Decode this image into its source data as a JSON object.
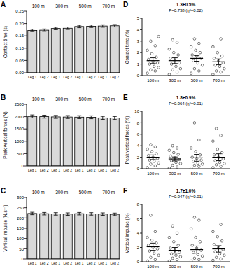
{
  "chart_data": [
    {
      "type": "bar",
      "panel": "A",
      "y_label": "Contact time (s)",
      "categories": [
        "100 m",
        "300 m",
        "500 m",
        "700 m"
      ],
      "ylim": [
        0,
        0.25
      ],
      "yticks": [
        {
          "value": 0,
          "label": "0.00"
        },
        {
          "value": 0.05,
          "label": "0.05"
        },
        {
          "value": 0.1,
          "label": "0.10"
        },
        {
          "value": 0.15,
          "label": "0.15"
        },
        {
          "value": 0.2,
          "label": "0.20"
        },
        {
          "value": 0.25,
          "label": "0.25"
        }
      ],
      "series": [
        {
          "name": "Leg 1",
          "color": "#d9d9d9",
          "values": [
            0.172,
            0.18,
            0.188,
            0.19
          ],
          "errors": [
            0.005,
            0.005,
            0.005,
            0.005
          ]
        },
        {
          "name": "Leg 2",
          "color": "#d9d9d9",
          "values": [
            0.173,
            0.181,
            0.189,
            0.191
          ],
          "errors": [
            0.005,
            0.005,
            0.005,
            0.005
          ]
        }
      ]
    },
    {
      "type": "bar",
      "panel": "B",
      "y_label": "Peak vertical forces (N)",
      "categories": [
        "100 m",
        "300 m",
        "500 m",
        "700 m"
      ],
      "ylim": [
        0,
        2500
      ],
      "yticks": [
        0,
        500,
        1000,
        1500,
        2000,
        2500
      ],
      "series": [
        {
          "name": "Leg 1",
          "color": "#d9d9d9",
          "values": [
            2010,
            1990,
            1980,
            1950
          ],
          "errors": [
            60,
            60,
            60,
            60
          ]
        },
        {
          "name": "Leg 2",
          "color": "#d9d9d9",
          "values": [
            2000,
            1985,
            1975,
            1945
          ],
          "errors": [
            60,
            60,
            60,
            60
          ]
        }
      ]
    },
    {
      "type": "bar",
      "panel": "C",
      "y_label": "Vertical impulse (N.s⁻¹)",
      "categories": [
        "100 m",
        "300 m",
        "500 m",
        "700 m"
      ],
      "ylim": [
        0,
        300
      ],
      "yticks": [
        0,
        50,
        100,
        150,
        200,
        250,
        300
      ],
      "series": [
        {
          "name": "Leg 1",
          "color": "#d9d9d9",
          "values": [
            222,
            220,
            221,
            219
          ],
          "errors": [
            6,
            6,
            6,
            6
          ]
        },
        {
          "name": "Leg 2",
          "color": "#d9d9d9",
          "values": [
            221,
            219,
            220,
            218
          ],
          "errors": [
            6,
            6,
            6,
            6
          ]
        }
      ]
    },
    {
      "type": "scatter",
      "panel": "D",
      "y_label": "Contact time (%)",
      "annotations": [
        "1.3±0.5%",
        "P=0.738 (η²=0.02)"
      ],
      "categories": [
        "100 m",
        "300 m",
        "500 m",
        "700 m"
      ],
      "ylim": [
        0,
        5
      ],
      "yticks": [
        0,
        1,
        2,
        3,
        4,
        5
      ],
      "color": "#555555",
      "points": [
        [
          0.2,
          0.4,
          0.5,
          0.7,
          0.8,
          1.0,
          1.1,
          1.2,
          1.4,
          1.6,
          1.9,
          2.2,
          2.6,
          3.0,
          3.4
        ],
        [
          0.1,
          0.3,
          0.5,
          0.6,
          0.8,
          1.0,
          1.1,
          1.3,
          1.5,
          1.8,
          2.0,
          2.3,
          2.9,
          3.1
        ],
        [
          0.2,
          0.4,
          0.6,
          0.9,
          1.1,
          1.3,
          1.5,
          1.7,
          1.8,
          2.0,
          2.2,
          2.5,
          2.8,
          3.2
        ],
        [
          0.1,
          0.3,
          0.4,
          0.6,
          0.8,
          0.9,
          1.1,
          1.3,
          1.5,
          1.7,
          2.0,
          2.5,
          3.2
        ]
      ],
      "means": [
        1.3,
        1.3,
        1.5,
        1.2
      ],
      "errors": [
        0.25,
        0.25,
        0.25,
        0.25
      ]
    },
    {
      "type": "scatter",
      "panel": "E",
      "y_label": "Peak vertical forces (%)",
      "annotations": [
        "1.8±0.9%",
        "P=0.964 (η²=0.01)"
      ],
      "categories": [
        "100 m",
        "300 m",
        "500 m",
        "700 m"
      ],
      "ylim": [
        0,
        10
      ],
      "yticks": [
        0,
        2,
        4,
        6,
        8,
        10
      ],
      "color": "#555555",
      "points": [
        [
          0.2,
          0.5,
          0.8,
          1.0,
          1.3,
          1.5,
          1.8,
          2.0,
          2.3,
          2.6,
          3.0,
          3.4,
          3.8,
          4.2
        ],
        [
          0.1,
          0.3,
          0.6,
          0.9,
          1.1,
          1.4,
          1.6,
          1.9,
          2.2,
          2.5,
          2.8,
          3.2,
          3.6,
          4.0
        ],
        [
          0.1,
          0.4,
          0.6,
          0.8,
          1.0,
          1.3,
          1.5,
          1.8,
          2.0,
          2.4,
          3.0,
          3.6,
          5.0,
          8.0
        ],
        [
          0.2,
          0.4,
          0.7,
          0.9,
          1.1,
          1.4,
          1.7,
          2.0,
          2.4,
          2.8,
          3.4,
          4.8,
          5.8,
          7.0
        ]
      ],
      "means": [
        2.0,
        1.7,
        1.9,
        2.0
      ],
      "errors": [
        0.4,
        0.35,
        0.6,
        0.6
      ]
    },
    {
      "type": "scatter",
      "panel": "F",
      "y_label": "Vertical impulse (%)",
      "annotations": [
        "1.7±1.0%",
        "P=0.947 (η²=0.01)"
      ],
      "categories": [
        "100 m",
        "300 m",
        "500 m",
        "700 m"
      ],
      "ylim": [
        0,
        8
      ],
      "yticks": [
        0,
        2,
        4,
        6,
        8
      ],
      "color": "#555555",
      "points": [
        [
          0.1,
          0.3,
          0.6,
          0.9,
          1.2,
          1.5,
          1.8,
          2.0,
          2.3,
          2.6,
          3.0,
          3.4,
          4.2,
          6.5
        ],
        [
          0.1,
          0.3,
          0.5,
          0.7,
          0.9,
          1.1,
          1.3,
          1.6,
          1.9,
          2.3,
          2.8,
          3.4,
          4.0,
          5.0
        ],
        [
          0.1,
          0.3,
          0.5,
          0.8,
          1.0,
          1.3,
          1.6,
          1.9,
          2.3,
          2.8,
          3.4,
          4.6,
          5.8,
          6.2
        ],
        [
          0.2,
          0.4,
          0.6,
          0.9,
          1.1,
          1.4,
          1.7,
          2.0,
          2.4,
          2.9,
          3.5,
          4.2,
          5.2
        ]
      ],
      "means": [
        2.1,
        1.6,
        1.7,
        1.8
      ],
      "errors": [
        0.5,
        0.4,
        0.5,
        0.45
      ]
    }
  ]
}
